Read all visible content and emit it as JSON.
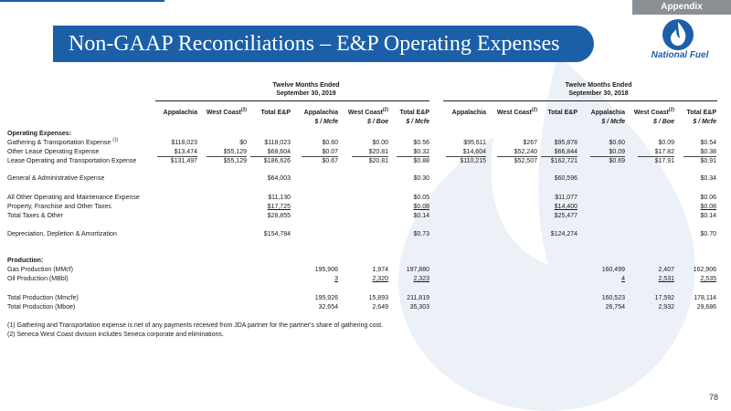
{
  "header": {
    "appendix": "Appendix",
    "title": "Non-GAAP Reconciliations – E&P Operating Expenses",
    "logo_text": "National Fuel"
  },
  "period_2019": {
    "line1": "Twelve Months Ended",
    "line2": "September 30, 2019"
  },
  "period_2018": {
    "line1": "Twelve Months Ended",
    "line2": "September 30, 2018"
  },
  "columns": {
    "appalachia": "Appalachia",
    "west_coast": "West Coast",
    "west_coast_note": "(2)",
    "total": "Total E&P",
    "per_mcfe": "$ / Mcfe",
    "per_boe": "$ / Boe"
  },
  "sections": {
    "operating_expenses": "Operating Expenses:",
    "production": "Production:"
  },
  "rows": [
    {
      "label": "Gathering & Transportation Expense",
      "note": "(1)",
      "y19": [
        "$118,023",
        "$0",
        "$118,023",
        "$0.60",
        "$0.00",
        "$0.56"
      ],
      "y18": [
        "$95,611",
        "$267",
        "$95,878",
        "$0.60",
        "$0.09",
        "$0.54"
      ]
    },
    {
      "label": "Other Lease Operating Expense",
      "note": "",
      "y19": [
        "$13,474",
        "$55,129",
        "$68,604",
        "$0.07",
        "$20.81",
        "$0.32"
      ],
      "y18": [
        "$14,604",
        "$52,240",
        "$66,844",
        "$0.09",
        "$17.82",
        "$0.38"
      ]
    },
    {
      "label": "Lease Operating and Transportation Expense",
      "note": "",
      "y19": [
        "$131,497",
        "$55,129",
        "$186,626",
        "$0.67",
        "$20.81",
        "$0.88"
      ],
      "y18": [
        "$110,215",
        "$52,507",
        "$162,721",
        "$0.69",
        "$17.91",
        "$0.91"
      ]
    },
    {
      "label": "General & Administrative Expense",
      "note": "",
      "y19": [
        "",
        "",
        "$64,003",
        "",
        "",
        "$0.30"
      ],
      "y18": [
        "",
        "",
        "$60,596",
        "",
        "",
        "$0.34"
      ]
    },
    {
      "label": "All Other Operating and Maintenance Expense",
      "note": "",
      "y19": [
        "",
        "",
        "$11,130",
        "",
        "",
        "$0.05"
      ],
      "y18": [
        "",
        "",
        "$11,077",
        "",
        "",
        "$0.06"
      ]
    },
    {
      "label": "Property, Franchise and Other Taxes",
      "note": "",
      "y19": [
        "",
        "",
        "$17,725",
        "",
        "",
        "$0.08"
      ],
      "y18": [
        "",
        "",
        "$14,400",
        "",
        "",
        "$0.08"
      ]
    },
    {
      "label": "Total Taxes & Other",
      "note": "",
      "y19": [
        "",
        "",
        "$28,855",
        "",
        "",
        "$0.14"
      ],
      "y18": [
        "",
        "",
        "$25,477",
        "",
        "",
        "$0.14"
      ]
    },
    {
      "label": "Depreciation, Depletion & Amortization",
      "note": "",
      "y19": [
        "",
        "",
        "$154,784",
        "",
        "",
        "$0.73"
      ],
      "y18": [
        "",
        "",
        "$124,274",
        "",
        "",
        "$0.70"
      ]
    },
    {
      "label": "Gas Production (MMcf)",
      "note": "",
      "y19": [
        "195,906",
        "1,974",
        "197,880"
      ],
      "y18": [
        "160,499",
        "2,407",
        "162,906"
      ]
    },
    {
      "label": "Oil Production (MBbl)",
      "note": "",
      "y19": [
        "3",
        "2,320",
        "2,323"
      ],
      "y18": [
        "4",
        "2,531",
        "2,535"
      ]
    },
    {
      "label": "Total Production (Mmcfe)",
      "note": "",
      "y19": [
        "195,926",
        "15,893",
        "211,819"
      ],
      "y18": [
        "160,523",
        "17,592",
        "178,114"
      ]
    },
    {
      "label": "Total Production (Mboe)",
      "note": "",
      "y19": [
        "32,654",
        "2,649",
        "35,303"
      ],
      "y18": [
        "26,754",
        "2,932",
        "29,686"
      ]
    }
  ],
  "footnotes": [
    "(1) Gathering and Transportation expense is net of any payments received from JDA partner for the partner's share of gathering cost.",
    "(2) Seneca West Coast division includes Seneca corporate and eliminations."
  ],
  "page_number": "78",
  "colors": {
    "brand_blue": "#1b5fa8",
    "appendix_gray": "#8a8f94"
  }
}
